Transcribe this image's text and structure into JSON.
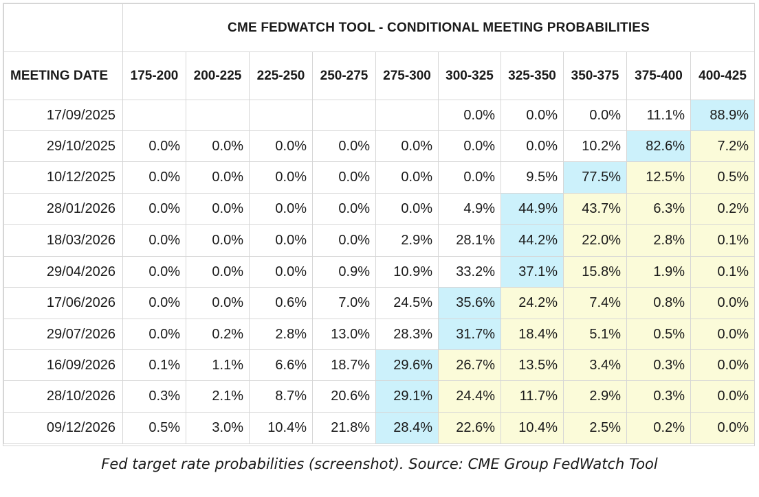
{
  "title": "CME FEDWATCH TOOL - CONDITIONAL MEETING PROBABILITIES",
  "header": {
    "date_label": "MEETING DATE",
    "ranges": [
      "175-200",
      "200-225",
      "225-250",
      "250-275",
      "275-300",
      "300-325",
      "325-350",
      "350-375",
      "375-400",
      "400-425"
    ]
  },
  "colors": {
    "highlight_max": "#ccf1fb",
    "highlight_secondary": "#fbfbd9",
    "border": "#d6d6d6"
  },
  "rows": [
    {
      "date": "17/09/2025",
      "values": [
        "",
        "",
        "",
        "",
        "",
        "0.0%",
        "0.0%",
        "0.0%",
        "11.1%",
        "88.9%"
      ],
      "hl": [
        "",
        "",
        "",
        "",
        "",
        "",
        "",
        "",
        "",
        "b"
      ]
    },
    {
      "date": "29/10/2025",
      "values": [
        "0.0%",
        "0.0%",
        "0.0%",
        "0.0%",
        "0.0%",
        "0.0%",
        "0.0%",
        "10.2%",
        "82.6%",
        "7.2%"
      ],
      "hl": [
        "",
        "",
        "",
        "",
        "",
        "",
        "",
        "",
        "b",
        "y"
      ]
    },
    {
      "date": "10/12/2025",
      "values": [
        "0.0%",
        "0.0%",
        "0.0%",
        "0.0%",
        "0.0%",
        "0.0%",
        "9.5%",
        "77.5%",
        "12.5%",
        "0.5%"
      ],
      "hl": [
        "",
        "",
        "",
        "",
        "",
        "",
        "",
        "b",
        "y",
        "y"
      ]
    },
    {
      "date": "28/01/2026",
      "values": [
        "0.0%",
        "0.0%",
        "0.0%",
        "0.0%",
        "0.0%",
        "4.9%",
        "44.9%",
        "43.7%",
        "6.3%",
        "0.2%"
      ],
      "hl": [
        "",
        "",
        "",
        "",
        "",
        "",
        "b",
        "y",
        "y",
        "y"
      ]
    },
    {
      "date": "18/03/2026",
      "values": [
        "0.0%",
        "0.0%",
        "0.0%",
        "0.0%",
        "2.9%",
        "28.1%",
        "44.2%",
        "22.0%",
        "2.8%",
        "0.1%"
      ],
      "hl": [
        "",
        "",
        "",
        "",
        "",
        "",
        "b",
        "y",
        "y",
        "y"
      ]
    },
    {
      "date": "29/04/2026",
      "values": [
        "0.0%",
        "0.0%",
        "0.0%",
        "0.9%",
        "10.9%",
        "33.2%",
        "37.1%",
        "15.8%",
        "1.9%",
        "0.1%"
      ],
      "hl": [
        "",
        "",
        "",
        "",
        "",
        "",
        "b",
        "y",
        "y",
        "y"
      ]
    },
    {
      "date": "17/06/2026",
      "values": [
        "0.0%",
        "0.0%",
        "0.6%",
        "7.0%",
        "24.5%",
        "35.6%",
        "24.2%",
        "7.4%",
        "0.8%",
        "0.0%"
      ],
      "hl": [
        "",
        "",
        "",
        "",
        "",
        "b",
        "y",
        "y",
        "y",
        "y"
      ]
    },
    {
      "date": "29/07/2026",
      "values": [
        "0.0%",
        "0.2%",
        "2.8%",
        "13.0%",
        "28.3%",
        "31.7%",
        "18.4%",
        "5.1%",
        "0.5%",
        "0.0%"
      ],
      "hl": [
        "",
        "",
        "",
        "",
        "",
        "b",
        "y",
        "y",
        "y",
        "y"
      ]
    },
    {
      "date": "16/09/2026",
      "values": [
        "0.1%",
        "1.1%",
        "6.6%",
        "18.7%",
        "29.6%",
        "26.7%",
        "13.5%",
        "3.4%",
        "0.3%",
        "0.0%"
      ],
      "hl": [
        "",
        "",
        "",
        "",
        "b",
        "y",
        "y",
        "y",
        "y",
        "y"
      ]
    },
    {
      "date": "28/10/2026",
      "values": [
        "0.3%",
        "2.1%",
        "8.7%",
        "20.6%",
        "29.1%",
        "24.4%",
        "11.7%",
        "2.9%",
        "0.3%",
        "0.0%"
      ],
      "hl": [
        "",
        "",
        "",
        "",
        "b",
        "y",
        "y",
        "y",
        "y",
        "y"
      ]
    },
    {
      "date": "09/12/2026",
      "values": [
        "0.5%",
        "3.0%",
        "10.4%",
        "21.8%",
        "28.4%",
        "22.6%",
        "10.4%",
        "2.5%",
        "0.2%",
        "0.0%"
      ],
      "hl": [
        "",
        "",
        "",
        "",
        "b",
        "y",
        "y",
        "y",
        "y",
        "y"
      ]
    }
  ],
  "caption": "Fed target rate probabilities (screenshot). Source: CME Group FedWatch Tool"
}
